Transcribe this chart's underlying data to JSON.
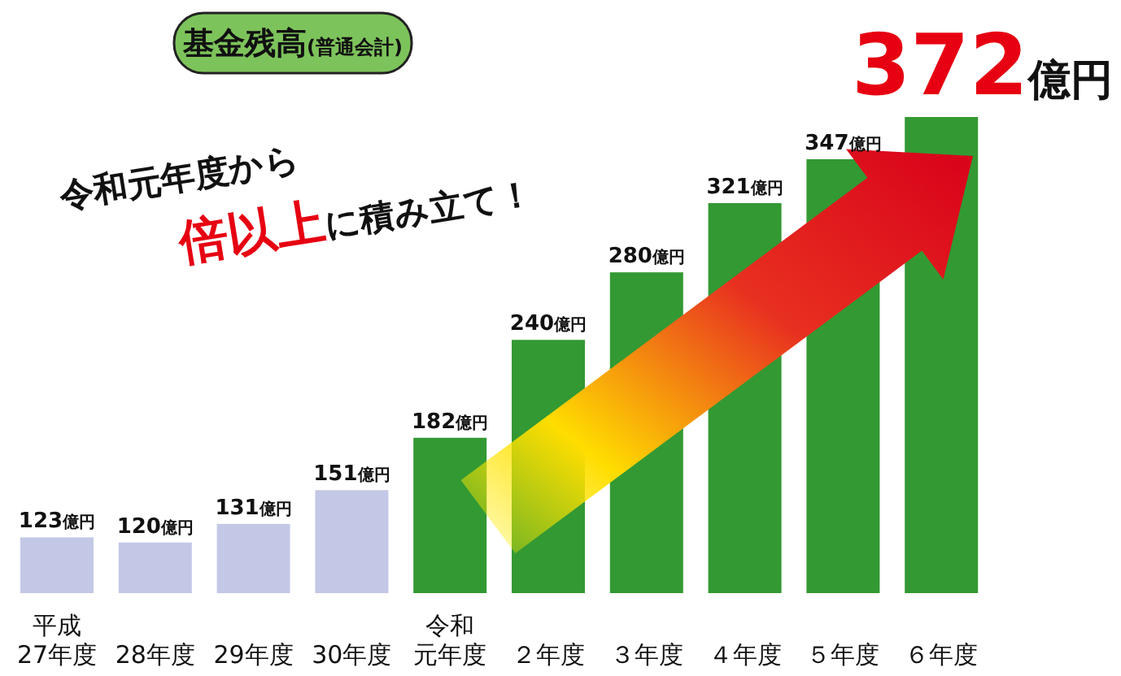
{
  "chart_data": {
    "type": "bar",
    "title": "基金残高(普通会計)",
    "categories": [
      "平成27年度",
      "28年度",
      "29年度",
      "30年度",
      "令和元年度",
      "２年度",
      "３年度",
      "４年度",
      "５年度",
      "６年度"
    ],
    "values": [
      123,
      120,
      131,
      151,
      182,
      240,
      280,
      321,
      347,
      372
    ],
    "colors": [
      "#c3c8e6",
      "#c3c8e6",
      "#c3c8e6",
      "#c3c8e6",
      "#339933",
      "#339933",
      "#339933",
      "#339933",
      "#339933",
      "#339933"
    ],
    "value_labels": [
      "123億円",
      "120億円",
      "131億円",
      "151億円",
      "182億円",
      "240億円",
      "280億円",
      "321億円",
      "347億円",
      "372億円"
    ],
    "ylim": [
      90,
      372
    ],
    "tick_labels": "x",
    "annotations": [
      "令和元年度から",
      "倍以上に積み立て！"
    ]
  }
}
